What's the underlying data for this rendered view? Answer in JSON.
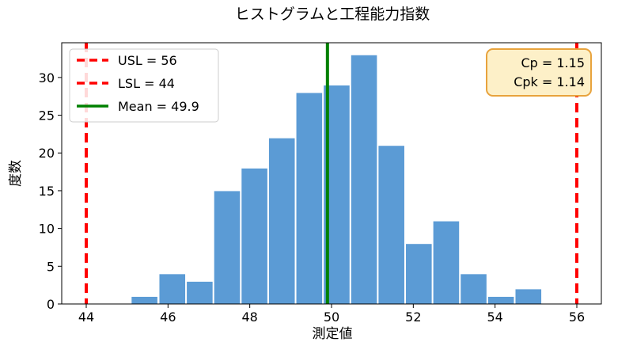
{
  "chart_data": {
    "type": "bar",
    "title": "ヒストグラムと工程能力指数",
    "xlabel": "測定値",
    "ylabel": "度数",
    "xlim": [
      43.4,
      56.6
    ],
    "ylim": [
      0,
      34.6
    ],
    "x_ticks": [
      44,
      46,
      48,
      50,
      52,
      54,
      56
    ],
    "y_ticks": [
      0,
      5,
      10,
      15,
      20,
      25,
      30
    ],
    "grid": false,
    "bar_color": "#5b9bd5",
    "bins": [
      {
        "x0": 45.1,
        "x1": 45.75,
        "count": 1
      },
      {
        "x0": 45.78,
        "x1": 46.43,
        "count": 4
      },
      {
        "x0": 46.45,
        "x1": 47.1,
        "count": 3
      },
      {
        "x0": 47.12,
        "x1": 47.77,
        "count": 15
      },
      {
        "x0": 47.79,
        "x1": 48.44,
        "count": 18
      },
      {
        "x0": 48.46,
        "x1": 49.11,
        "count": 22
      },
      {
        "x0": 49.13,
        "x1": 49.78,
        "count": 28
      },
      {
        "x0": 49.8,
        "x1": 50.45,
        "count": 29
      },
      {
        "x0": 50.47,
        "x1": 51.12,
        "count": 33
      },
      {
        "x0": 51.14,
        "x1": 51.79,
        "count": 21
      },
      {
        "x0": 51.81,
        "x1": 52.46,
        "count": 8
      },
      {
        "x0": 52.48,
        "x1": 53.13,
        "count": 11
      },
      {
        "x0": 53.15,
        "x1": 53.8,
        "count": 4
      },
      {
        "x0": 53.82,
        "x1": 54.47,
        "count": 1
      },
      {
        "x0": 54.49,
        "x1": 55.14,
        "count": 2
      }
    ],
    "lines": [
      {
        "label": "USL = 56",
        "x": 56,
        "color": "#ff0000",
        "style": "dashed"
      },
      {
        "label": "LSL = 44",
        "x": 44,
        "color": "#ff0000",
        "style": "dashed"
      },
      {
        "label": "Mean = 49.9",
        "x": 49.9,
        "color": "#008000",
        "style": "solid"
      }
    ],
    "legend_position": "top-left",
    "annotation": {
      "lines": [
        "Cp = 1.15",
        "Cpk = 1.14"
      ],
      "position": "top-right",
      "background": "#fdf0c8",
      "border": "#e8a33d"
    }
  }
}
